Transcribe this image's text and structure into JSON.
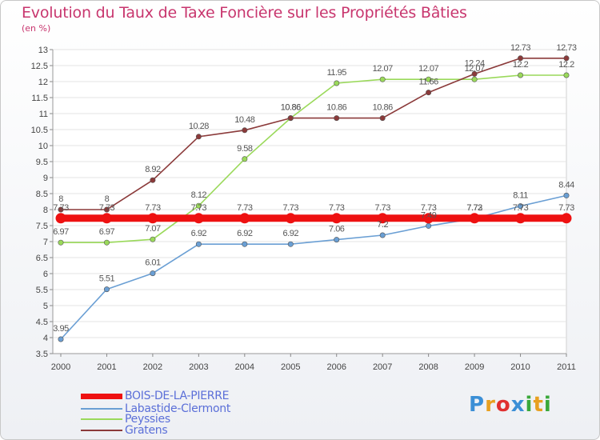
{
  "title": "Evolution du Taux de Taxe Foncière sur les Propriétés Bâties",
  "unit": "(en %)",
  "chart_data": {
    "type": "line",
    "categories": [
      "2000",
      "2001",
      "2002",
      "2003",
      "2004",
      "2005",
      "2006",
      "2007",
      "2008",
      "2009",
      "2010",
      "2011"
    ],
    "ylim": [
      3.5,
      13
    ],
    "yticks": [
      "3.5",
      "4",
      "4.5",
      "5",
      "5.5",
      "6",
      "6.5",
      "7",
      "7.5",
      "8",
      "8.5",
      "9",
      "9.5",
      "10",
      "10.5",
      "11",
      "11.5",
      "12",
      "12.5",
      "13"
    ],
    "series": [
      {
        "name": "BOIS-DE-LA-PIERRE",
        "color": "#ee1111",
        "values": [
          7.73,
          7.73,
          7.73,
          7.73,
          7.73,
          7.73,
          7.73,
          7.73,
          7.73,
          7.73,
          7.73,
          7.73
        ],
        "labels": [
          "7.73",
          "7.73",
          "7.73",
          "7.73",
          "7.73",
          "7.73",
          "7.73",
          "7.73",
          "7.73",
          "7.73",
          "7.73",
          "7.73"
        ]
      },
      {
        "name": "Labastide-Clermont",
        "color": "#6a9fd4",
        "values": [
          3.95,
          5.51,
          6.01,
          6.92,
          6.92,
          6.92,
          7.06,
          7.2,
          7.49,
          7.72,
          8.11,
          8.44
        ],
        "labels": [
          "3.95",
          "5.51",
          "6.01",
          "6.92",
          "6.92",
          "6.92",
          "7.06",
          "7.2",
          "7.49",
          "7.72",
          "8.11",
          "8.44"
        ]
      },
      {
        "name": "Peyssies",
        "color": "#9ad95a",
        "values": [
          6.97,
          6.97,
          7.07,
          8.12,
          9.58,
          10.86,
          11.95,
          12.07,
          12.07,
          12.07,
          12.2,
          12.2
        ],
        "labels": [
          "6.97",
          "6.97",
          "7.07",
          "8.12",
          "9.58",
          "10.86",
          "11.95",
          "12.07",
          "12.07",
          "12.07",
          "12.2",
          "12.2"
        ]
      },
      {
        "name": "Gratens",
        "color": "#8b3a3a",
        "values": [
          8,
          8,
          8.92,
          10.28,
          10.48,
          10.86,
          10.86,
          10.86,
          11.66,
          12.24,
          12.73,
          12.73
        ],
        "labels": [
          "8",
          "8",
          "8.92",
          "10.28",
          "10.48",
          "10.86",
          "10.86",
          "10.86",
          "11.66",
          "12.24",
          "12.73",
          "12.73"
        ]
      }
    ]
  },
  "logo": {
    "letters": [
      "P",
      "r",
      "o",
      "x",
      "i",
      "t",
      "i"
    ],
    "colors": [
      "#3b8fd6",
      "#e8a020",
      "#e03030",
      "#3b8fd6",
      "#3aa83a",
      "#e8a020",
      "#3aa83a"
    ]
  }
}
